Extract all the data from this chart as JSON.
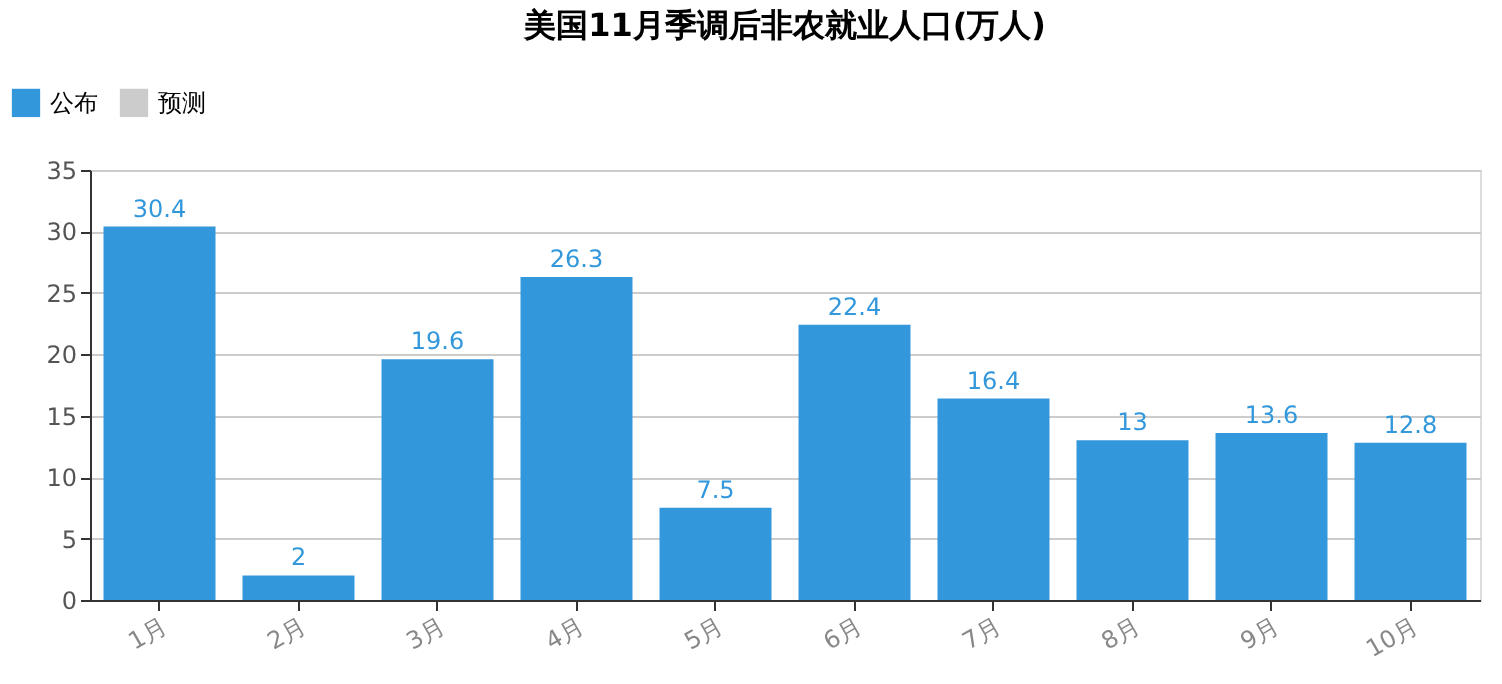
{
  "chart_data": {
    "type": "bar",
    "title": "美国11月季调后非农就业人口(万人)",
    "categories": [
      "1月",
      "2月",
      "3月",
      "4月",
      "5月",
      "6月",
      "7月",
      "8月",
      "9月",
      "10月"
    ],
    "series": [
      {
        "name": "公布",
        "color": "#3398db",
        "values": [
          30.4,
          2,
          19.6,
          26.3,
          7.5,
          22.4,
          16.4,
          13,
          13.6,
          12.8
        ]
      },
      {
        "name": "预测",
        "color": "#cccccc",
        "values": [
          null,
          null,
          null,
          null,
          null,
          null,
          null,
          null,
          null,
          null
        ]
      }
    ],
    "ylim": [
      0,
      35
    ],
    "yticks": [
      0,
      5,
      10,
      15,
      20,
      25,
      30,
      35
    ],
    "grid": "y",
    "legend": "top left",
    "data_labels": true
  }
}
